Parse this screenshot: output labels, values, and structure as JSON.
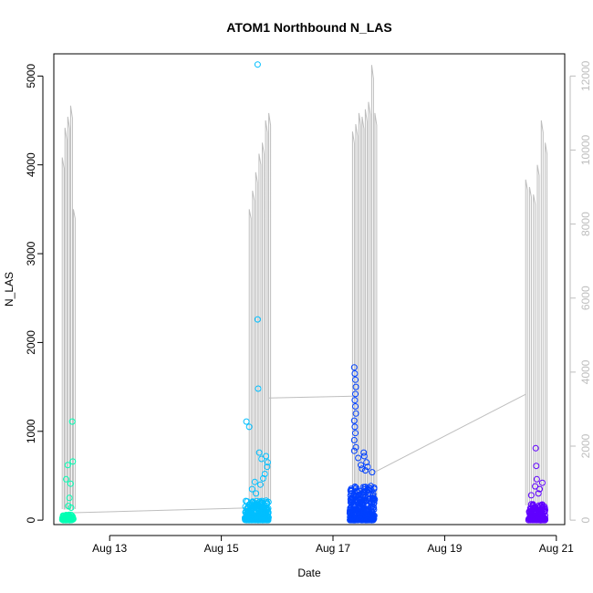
{
  "chart_data": {
    "type": "scatter",
    "title": "ATOM1 Northbound N_LAS",
    "xlabel": "Date",
    "ylabel": "N_LAS",
    "x_ticks": [
      {
        "value": 13,
        "label": "Aug 13"
      },
      {
        "value": 15,
        "label": "Aug 15"
      },
      {
        "value": 17,
        "label": "Aug 17"
      },
      {
        "value": 19,
        "label": "Aug 19"
      },
      {
        "value": 21,
        "label": "Aug 21"
      }
    ],
    "xlim": [
      12.0,
      21.15
    ],
    "ylim": [
      -50,
      5250
    ],
    "y_ticks": [
      0,
      1000,
      2000,
      3000,
      4000,
      5000
    ],
    "y2lim": [
      -120,
      12600
    ],
    "y2_ticks": [
      0,
      2000,
      4000,
      6000,
      8000,
      10000,
      12000
    ],
    "grid": false,
    "series": [
      {
        "color": "#00ffb3",
        "clusters": [
          {
            "x_start": 12.15,
            "x_end": 12.35,
            "base_max": 60,
            "count": 90
          }
        ],
        "outliers": [
          [
            12.22,
            460
          ],
          [
            12.25,
            620
          ],
          [
            12.28,
            250
          ],
          [
            12.3,
            410
          ],
          [
            12.33,
            1110
          ],
          [
            12.34,
            660
          ],
          [
            12.26,
            160
          ],
          [
            12.31,
            140
          ]
        ]
      },
      {
        "color": "#00bfff",
        "clusters": [
          {
            "x_start": 15.42,
            "x_end": 15.85,
            "base_max": 220,
            "count": 240
          }
        ],
        "outliers": [
          [
            15.45,
            1110
          ],
          [
            15.5,
            1050
          ],
          [
            15.65,
            5130
          ],
          [
            15.65,
            2260
          ],
          [
            15.66,
            1480
          ],
          [
            15.68,
            760
          ],
          [
            15.72,
            690
          ],
          [
            15.8,
            720
          ],
          [
            15.82,
            600
          ],
          [
            15.78,
            520
          ],
          [
            15.6,
            430
          ],
          [
            15.7,
            400
          ],
          [
            15.55,
            350
          ],
          [
            15.75,
            470
          ],
          [
            15.83,
            650
          ],
          [
            15.62,
            300
          ]
        ]
      },
      {
        "color": "#0040ff",
        "clusters": [
          {
            "x_start": 17.3,
            "x_end": 17.75,
            "base_max": 400,
            "count": 320
          }
        ],
        "outliers": [
          [
            17.38,
            1720
          ],
          [
            17.39,
            1650
          ],
          [
            17.4,
            1580
          ],
          [
            17.41,
            1500
          ],
          [
            17.4,
            1420
          ],
          [
            17.39,
            1350
          ],
          [
            17.4,
            1280
          ],
          [
            17.41,
            1200
          ],
          [
            17.38,
            1120
          ],
          [
            17.39,
            1050
          ],
          [
            17.4,
            980
          ],
          [
            17.38,
            900
          ],
          [
            17.41,
            820
          ],
          [
            17.38,
            780
          ],
          [
            17.55,
            760
          ],
          [
            17.56,
            720
          ],
          [
            17.6,
            650
          ],
          [
            17.62,
            600
          ],
          [
            17.58,
            560
          ],
          [
            17.7,
            540
          ],
          [
            17.45,
            700
          ],
          [
            17.5,
            620
          ],
          [
            17.52,
            580
          ]
        ]
      },
      {
        "color": "#6000ff",
        "clusters": [
          {
            "x_start": 20.5,
            "x_end": 20.8,
            "base_max": 180,
            "count": 170
          }
        ],
        "outliers": [
          [
            20.63,
            810
          ],
          [
            20.64,
            610
          ],
          [
            20.65,
            460
          ],
          [
            20.62,
            380
          ],
          [
            20.75,
            420
          ],
          [
            20.7,
            350
          ],
          [
            20.55,
            280
          ],
          [
            20.68,
            300
          ]
        ]
      }
    ],
    "secondary_line": {
      "color": "#bebebe",
      "segments": [
        {
          "x_start": 12.15,
          "x_end": 12.35,
          "spikes": [
            9800,
            10600,
            10900,
            11200,
            8400
          ],
          "floor": 300
        },
        {
          "x_start": 15.5,
          "x_end": 15.85,
          "spikes": [
            8400,
            8900,
            9400,
            9900,
            10200,
            10800,
            11000
          ],
          "floor": 500
        },
        {
          "x_start": 17.35,
          "x_end": 17.75,
          "spikes": [
            10500,
            10700,
            11000,
            10900,
            11100,
            11300,
            12300,
            11000
          ],
          "floor": 500
        },
        {
          "x_start": 20.45,
          "x_end": 20.8,
          "spikes": [
            9200,
            9000,
            8800,
            9600,
            10800,
            10200
          ],
          "floor": 400
        }
      ],
      "bridges": [
        [
          [
            12.35,
            200
          ],
          [
            15.5,
            330
          ]
        ],
        [
          [
            15.85,
            3300
          ],
          [
            17.35,
            3350
          ]
        ],
        [
          [
            17.75,
            1300
          ],
          [
            20.45,
            3400
          ]
        ]
      ]
    }
  }
}
